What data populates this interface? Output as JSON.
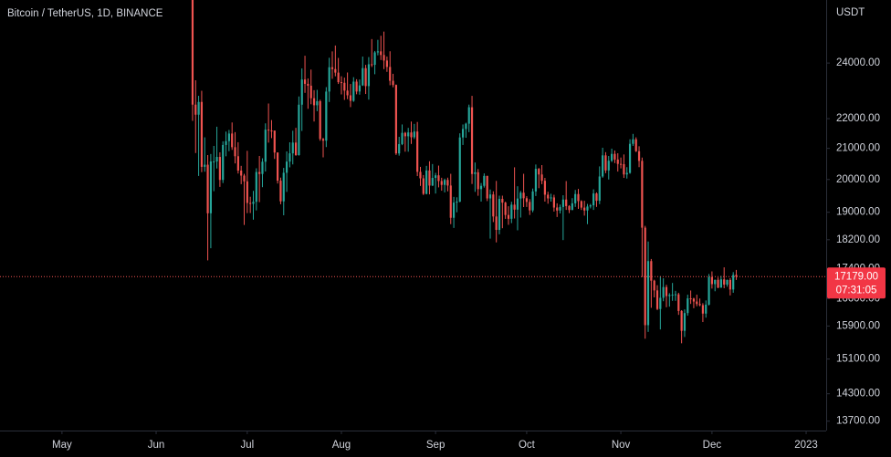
{
  "chart_data": {
    "type": "candlestick",
    "title": "Bitcoin / TetherUS, 1D, BINANCE",
    "y_axis_unit": "USDT",
    "log_scale": true,
    "grid": false,
    "up_color": "#26a69a",
    "down_color": "#ef5350",
    "last_price": 17179,
    "last_price_label": "17179.00",
    "countdown": "07:31:05",
    "ylim": [
      13500,
      26490
    ],
    "yticks": [
      {
        "value": 24000,
        "label": "24000.00"
      },
      {
        "value": 22000,
        "label": "22000.00"
      },
      {
        "value": 21000,
        "label": "21000.00"
      },
      {
        "value": 20000,
        "label": "20000.00"
      },
      {
        "value": 19000,
        "label": "19000.00"
      },
      {
        "value": 18200,
        "label": "18200.00"
      },
      {
        "value": 17400,
        "label": "17400.00"
      },
      {
        "value": 16600,
        "label": "16600.00"
      },
      {
        "value": 15900,
        "label": "15900.00"
      },
      {
        "value": 15100,
        "label": "15100.00"
      },
      {
        "value": 14300,
        "label": "14300.00"
      },
      {
        "value": 13700,
        "label": "13700.00"
      }
    ],
    "xlim": [
      -63.4,
      208.6
    ],
    "xticks": [
      {
        "value": -43,
        "label": "May"
      },
      {
        "value": -12,
        "label": "Jun"
      },
      {
        "value": 18,
        "label": "Jul"
      },
      {
        "value": 49,
        "label": "Aug"
      },
      {
        "value": 80,
        "label": "Sep"
      },
      {
        "value": 110,
        "label": "Oct"
      },
      {
        "value": 141,
        "label": "Nov"
      },
      {
        "value": 171,
        "label": "Dec"
      },
      {
        "value": 202,
        "label": "2023"
      }
    ],
    "candles": [
      [
        26574,
        26895,
        21925,
        22487
      ],
      [
        22487,
        23362,
        20846,
        22136
      ],
      [
        22136,
        22800,
        20111,
        22583
      ],
      [
        22583,
        22980,
        20232,
        20401
      ],
      [
        20401,
        21365,
        20246,
        20468
      ],
      [
        20468,
        20780,
        17622,
        18970
      ],
      [
        18970,
        20815,
        17960,
        20574
      ],
      [
        20574,
        21080,
        19637,
        20574
      ],
      [
        20574,
        21723,
        20348,
        20720
      ],
      [
        20720,
        20870,
        19770,
        19987
      ],
      [
        19987,
        21233,
        19890,
        21110
      ],
      [
        21110,
        21558,
        20740,
        21237
      ],
      [
        21237,
        21614,
        20906,
        21492
      ],
      [
        21492,
        21868,
        20950,
        21038
      ],
      [
        21038,
        21540,
        20510,
        20742
      ],
      [
        20742,
        21202,
        20188,
        20281
      ],
      [
        20281,
        20432,
        19854,
        20123
      ],
      [
        20123,
        20179,
        18626,
        19942
      ],
      [
        19942,
        20918,
        18975,
        19279
      ],
      [
        19279,
        19467,
        18977,
        19252
      ],
      [
        19252,
        19647,
        18781,
        19315
      ],
      [
        19315,
        20354,
        19055,
        20236
      ],
      [
        20236,
        20750,
        19304,
        20175
      ],
      [
        20175,
        20675,
        19761,
        20564
      ],
      [
        20564,
        21838,
        20251,
        21624
      ],
      [
        21624,
        22527,
        21189,
        21594
      ],
      [
        21594,
        21951,
        21338,
        21591
      ],
      [
        21591,
        21597,
        20655,
        20862
      ],
      [
        20862,
        20868,
        19875,
        19963
      ],
      [
        19963,
        20059,
        19240,
        19328
      ],
      [
        19328,
        20366,
        18910,
        20212
      ],
      [
        20212,
        20900,
        19616,
        20569
      ],
      [
        20569,
        21200,
        20384,
        20836
      ],
      [
        20836,
        21588,
        20478,
        21190
      ],
      [
        21190,
        21685,
        20755,
        20779
      ],
      [
        20779,
        22777,
        20762,
        22485
      ],
      [
        22485,
        23800,
        21579,
        23389
      ],
      [
        23389,
        24276,
        22906,
        23231
      ],
      [
        23231,
        23427,
        22341,
        23164
      ],
      [
        23164,
        23756,
        22500,
        22714
      ],
      [
        22714,
        23002,
        21900,
        22465
      ],
      [
        22465,
        23014,
        22258,
        22609
      ],
      [
        22609,
        22660,
        21250,
        21310
      ],
      [
        21310,
        21347,
        20706,
        21254
      ],
      [
        21254,
        23112,
        21042,
        22952
      ],
      [
        22952,
        24199,
        22582,
        23843
      ],
      [
        23843,
        24442,
        23414,
        23774
      ],
      [
        23774,
        24668,
        23508,
        23643
      ],
      [
        23643,
        24194,
        23227,
        23293
      ],
      [
        23293,
        23509,
        22850,
        23268
      ],
      [
        23268,
        23459,
        22654,
        22987
      ],
      [
        22987,
        23648,
        22681,
        22818
      ],
      [
        22818,
        23226,
        22400,
        22622
      ],
      [
        22622,
        23475,
        22586,
        23312
      ],
      [
        23312,
        23400,
        22855,
        22954
      ],
      [
        22954,
        23391,
        22840,
        23175
      ],
      [
        23175,
        24245,
        23155,
        23810
      ],
      [
        23810,
        23933,
        22865,
        23149
      ],
      [
        23149,
        24226,
        22664,
        23954
      ],
      [
        23954,
        24918,
        23852,
        23934
      ],
      [
        23934,
        24456,
        23583,
        24403
      ],
      [
        24403,
        24888,
        24293,
        24442
      ],
      [
        24442,
        25047,
        24113,
        24305
      ],
      [
        24305,
        25211,
        23773,
        24094
      ],
      [
        24094,
        24247,
        23671,
        23854
      ],
      [
        23854,
        24446,
        23180,
        23342
      ],
      [
        23342,
        23600,
        23107,
        23191
      ],
      [
        23191,
        23208,
        20783,
        20834
      ],
      [
        20834,
        21382,
        20761,
        21140
      ],
      [
        21140,
        21800,
        21105,
        21515
      ],
      [
        21515,
        21548,
        20890,
        21400
      ],
      [
        21400,
        21684,
        20890,
        21529
      ],
      [
        21529,
        21900,
        21145,
        21368
      ],
      [
        21368,
        21819,
        21310,
        21559
      ],
      [
        21559,
        21886,
        20107,
        20241
      ],
      [
        20241,
        20400,
        19800,
        20037
      ],
      [
        20037,
        20141,
        19520,
        19555
      ],
      [
        19555,
        20432,
        19540,
        20285
      ],
      [
        20285,
        20580,
        19540,
        19811
      ],
      [
        19811,
        20490,
        19797,
        20050
      ],
      [
        20050,
        20209,
        19565,
        20131
      ],
      [
        20131,
        20440,
        19755,
        19952
      ],
      [
        19952,
        20055,
        19652,
        19832
      ],
      [
        19832,
        20028,
        19600,
        19986
      ],
      [
        19986,
        20058,
        19633,
        19812
      ],
      [
        19812,
        20179,
        18650,
        18837
      ],
      [
        18837,
        19463,
        18540,
        19290
      ],
      [
        19290,
        19450,
        19000,
        19319
      ],
      [
        19319,
        21500,
        19300,
        21361
      ],
      [
        21361,
        21800,
        21111,
        21648
      ],
      [
        21648,
        21860,
        21350,
        21826
      ],
      [
        21826,
        22488,
        21538,
        22395
      ],
      [
        22395,
        22799,
        19860,
        20173
      ],
      [
        20173,
        20540,
        19617,
        20227
      ],
      [
        20227,
        20330,
        19497,
        19701
      ],
      [
        19701,
        19890,
        19320,
        19803
      ],
      [
        19803,
        20192,
        19748,
        20113
      ],
      [
        20113,
        20117,
        19336,
        19416
      ],
      [
        19416,
        19690,
        18232,
        19537
      ],
      [
        19537,
        19634,
        18711,
        18875
      ],
      [
        18875,
        19956,
        18125,
        18483
      ],
      [
        18483,
        19500,
        18356,
        19402
      ],
      [
        19402,
        19500,
        18531,
        19289
      ],
      [
        19289,
        19316,
        18805,
        18920
      ],
      [
        18920,
        19180,
        18630,
        18807
      ],
      [
        18807,
        19315,
        18680,
        19227
      ],
      [
        19227,
        20385,
        18816,
        19079
      ],
      [
        19079,
        19790,
        18471,
        19413
      ],
      [
        19413,
        19645,
        18843,
        19591
      ],
      [
        19591,
        20180,
        19155,
        19422
      ],
      [
        19422,
        19484,
        19159,
        19310
      ],
      [
        19310,
        19395,
        18920,
        19056
      ],
      [
        19056,
        19719,
        19000,
        19629
      ],
      [
        19629,
        20475,
        19490,
        20337
      ],
      [
        20337,
        20365,
        19730,
        20158
      ],
      [
        20158,
        20456,
        19854,
        19960
      ],
      [
        19960,
        20050,
        19320,
        19530
      ],
      [
        19530,
        19620,
        19255,
        19417
      ],
      [
        19417,
        19559,
        19320,
        19446
      ],
      [
        19446,
        19527,
        19020,
        19141
      ],
      [
        19141,
        19268,
        18860,
        19052
      ],
      [
        19052,
        19230,
        18965,
        19157
      ],
      [
        19157,
        19513,
        18190,
        19382
      ],
      [
        19382,
        19951,
        19070,
        19185
      ],
      [
        19185,
        19212,
        18975,
        19067
      ],
      [
        19067,
        19424,
        19063,
        19268
      ],
      [
        19268,
        19676,
        19160,
        19550
      ],
      [
        19550,
        19706,
        19100,
        19334
      ],
      [
        19334,
        19360,
        19068,
        19139
      ],
      [
        19139,
        19345,
        18900,
        19053
      ],
      [
        19053,
        19250,
        18650,
        19172
      ],
      [
        19172,
        19250,
        19115,
        19208
      ],
      [
        19208,
        19695,
        19070,
        19567
      ],
      [
        19567,
        19601,
        19160,
        19345
      ],
      [
        19345,
        20415,
        19243,
        20095
      ],
      [
        20095,
        21020,
        20055,
        20770
      ],
      [
        20770,
        20875,
        20200,
        20285
      ],
      [
        20285,
        20750,
        20000,
        20595
      ],
      [
        20595,
        20990,
        20555,
        20818
      ],
      [
        20818,
        20930,
        20520,
        20635
      ],
      [
        20635,
        20840,
        20250,
        20495
      ],
      [
        20495,
        20700,
        20350,
        20485
      ],
      [
        20485,
        20800,
        20050,
        20159
      ],
      [
        20159,
        20390,
        20030,
        20209
      ],
      [
        20209,
        21300,
        20180,
        21148
      ],
      [
        21148,
        21480,
        21080,
        21299
      ],
      [
        21299,
        21365,
        20880,
        20905
      ],
      [
        20905,
        21069,
        20390,
        20591
      ],
      [
        20591,
        20700,
        17166,
        18547
      ],
      [
        18547,
        18600,
        15588,
        15922
      ],
      [
        15922,
        18150,
        15755,
        17601
      ],
      [
        17601,
        17660,
        16360,
        17070
      ],
      [
        17070,
        17095,
        16630,
        16812
      ],
      [
        16812,
        16950,
        16300,
        16330
      ],
      [
        16330,
        17190,
        15815,
        16619
      ],
      [
        16619,
        17134,
        16530,
        16900
      ],
      [
        16900,
        16960,
        16375,
        16663
      ],
      [
        16663,
        16740,
        16390,
        16692
      ],
      [
        16692,
        17010,
        16540,
        16700
      ],
      [
        16700,
        16800,
        16540,
        16710
      ],
      [
        16710,
        16750,
        16180,
        16280
      ],
      [
        16280,
        16300,
        15476,
        15781
      ],
      [
        15781,
        16320,
        15630,
        16227
      ],
      [
        16227,
        16700,
        16160,
        16603
      ],
      [
        16603,
        16810,
        16460,
        16598
      ],
      [
        16598,
        16620,
        16350,
        16522
      ],
      [
        16522,
        16700,
        16400,
        16458
      ],
      [
        16458,
        16600,
        16400,
        16428
      ],
      [
        16428,
        16480,
        16000,
        16213
      ],
      [
        16213,
        16550,
        16110,
        16442
      ],
      [
        16442,
        17250,
        16420,
        17163
      ],
      [
        17163,
        17320,
        16860,
        16978
      ],
      [
        16978,
        17100,
        16790,
        17092
      ],
      [
        17092,
        17155,
        16870,
        16885
      ],
      [
        16885,
        17200,
        16880,
        17105
      ],
      [
        17105,
        17430,
        16870,
        16966
      ],
      [
        16966,
        17100,
        16910,
        17090
      ],
      [
        17090,
        17140,
        16680,
        16836
      ],
      [
        16836,
        17300,
        16750,
        17224
      ],
      [
        17224,
        17360,
        17090,
        17179
      ]
    ]
  }
}
